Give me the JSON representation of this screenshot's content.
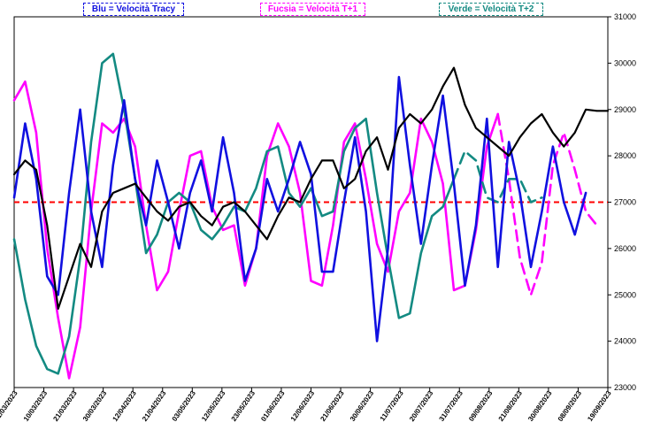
{
  "chart_data": {
    "type": "line",
    "legend": [
      {
        "label": "Blu = Velocità Tracy",
        "color": "#1010e0"
      },
      {
        "label": "Fucsia = Velocità T+1",
        "color": "#ff00ff"
      },
      {
        "label": "Verde = Velocità T+2",
        "color": "#138a82"
      }
    ],
    "y_axis": {
      "side": "right",
      "ylim": [
        23000,
        31000
      ],
      "ticks": [
        "31000",
        "30000",
        "29000",
        "28000",
        "27000",
        "26000",
        "25000",
        "24000",
        "23000"
      ]
    },
    "x_axis": {
      "ticks": [
        "01/03/2023",
        "10/03/2023",
        "21/03/2023",
        "30/03/2023",
        "12/04/2023",
        "21/04/2023",
        "03/05/2023",
        "12/05/2023",
        "23/05/2023",
        "01/06/2023",
        "12/06/2023",
        "21/06/2023",
        "30/06/2023",
        "11/07/2023",
        "20/07/2023",
        "31/07/2023",
        "09/08/2023",
        "21/08/2023",
        "30/08/2023",
        "08/09/2023",
        "19/09/2023"
      ]
    },
    "reference_line": {
      "value": 27000,
      "color": "#ff0000",
      "style": "dashed"
    },
    "series": [
      {
        "key": "price",
        "color": "#000000",
        "points": [
          [
            0,
            27600
          ],
          [
            1,
            27900
          ],
          [
            2,
            27700
          ],
          [
            3,
            26500
          ],
          [
            4,
            24700
          ],
          [
            5,
            25400
          ],
          [
            6,
            26100
          ],
          [
            7,
            25600
          ],
          [
            8,
            26800
          ],
          [
            9,
            27200
          ],
          [
            10,
            27300
          ],
          [
            11,
            27400
          ],
          [
            12,
            27100
          ],
          [
            13,
            26800
          ],
          [
            14,
            26600
          ],
          [
            15,
            26900
          ],
          [
            16,
            27000
          ],
          [
            17,
            26700
          ],
          [
            18,
            26500
          ],
          [
            19,
            26900
          ],
          [
            20,
            27000
          ],
          [
            21,
            26800
          ],
          [
            22,
            26500
          ],
          [
            23,
            26200
          ],
          [
            24,
            26700
          ],
          [
            25,
            27100
          ],
          [
            26,
            27000
          ],
          [
            27,
            27500
          ],
          [
            28,
            27900
          ],
          [
            29,
            27900
          ],
          [
            30,
            27300
          ],
          [
            31,
            27500
          ],
          [
            32,
            28100
          ],
          [
            33,
            28400
          ],
          [
            34,
            27700
          ],
          [
            35,
            28600
          ],
          [
            36,
            28900
          ],
          [
            37,
            28700
          ],
          [
            38,
            29000
          ],
          [
            39,
            29500
          ],
          [
            40,
            29900
          ],
          [
            41,
            29100
          ],
          [
            42,
            28600
          ],
          [
            43,
            28400
          ],
          [
            44,
            28200
          ],
          [
            45,
            28000
          ],
          [
            46,
            28400
          ],
          [
            47,
            28700
          ],
          [
            48,
            28900
          ],
          [
            49,
            28500
          ],
          [
            50,
            28200
          ],
          [
            51,
            28500
          ],
          [
            52,
            29000
          ],
          [
            53,
            28970
          ],
          [
            54,
            28970
          ]
        ]
      },
      {
        "key": "blu",
        "color": "#1010e0",
        "points": [
          [
            0,
            27100
          ],
          [
            1,
            28700
          ],
          [
            2,
            27500
          ],
          [
            3,
            25400
          ],
          [
            4,
            25000
          ],
          [
            5,
            27200
          ],
          [
            6,
            29000
          ],
          [
            7,
            26800
          ],
          [
            8,
            25600
          ],
          [
            9,
            27800
          ],
          [
            10,
            29200
          ],
          [
            11,
            27500
          ],
          [
            12,
            26500
          ],
          [
            13,
            27900
          ],
          [
            14,
            27000
          ],
          [
            15,
            26000
          ],
          [
            16,
            27200
          ],
          [
            17,
            27900
          ],
          [
            18,
            26800
          ],
          [
            19,
            28400
          ],
          [
            20,
            27200
          ],
          [
            21,
            25300
          ],
          [
            22,
            26000
          ],
          [
            23,
            27500
          ],
          [
            24,
            26800
          ],
          [
            25,
            27500
          ],
          [
            26,
            28300
          ],
          [
            27,
            27600
          ],
          [
            28,
            25500
          ],
          [
            29,
            25500
          ],
          [
            30,
            27000
          ],
          [
            31,
            28400
          ],
          [
            32,
            26800
          ],
          [
            33,
            24000
          ],
          [
            34,
            26000
          ],
          [
            35,
            29700
          ],
          [
            36,
            27800
          ],
          [
            37,
            26100
          ],
          [
            38,
            27800
          ],
          [
            39,
            29300
          ],
          [
            40,
            27400
          ],
          [
            41,
            25200
          ],
          [
            42,
            26500
          ],
          [
            43,
            28800
          ],
          [
            44,
            25600
          ],
          [
            45,
            28300
          ],
          [
            46,
            27200
          ],
          [
            47,
            25600
          ],
          [
            48,
            26800
          ],
          [
            49,
            28200
          ],
          [
            50,
            27000
          ],
          [
            51,
            26300
          ],
          [
            52,
            27200
          ]
        ]
      },
      {
        "key": "fucsia",
        "color": "#ff00ff",
        "points": [
          [
            0,
            29200
          ],
          [
            1,
            29600
          ],
          [
            2,
            28500
          ],
          [
            3,
            26000
          ],
          [
            4,
            24500
          ],
          [
            5,
            23200
          ],
          [
            6,
            24300
          ],
          [
            7,
            26800
          ],
          [
            8,
            28700
          ],
          [
            9,
            28500
          ],
          [
            10,
            28800
          ],
          [
            11,
            28200
          ],
          [
            12,
            26500
          ],
          [
            13,
            25100
          ],
          [
            14,
            25500
          ],
          [
            15,
            26800
          ],
          [
            16,
            28000
          ],
          [
            17,
            28100
          ],
          [
            18,
            26900
          ],
          [
            19,
            26400
          ],
          [
            20,
            26500
          ],
          [
            21,
            25200
          ],
          [
            22,
            26000
          ],
          [
            23,
            28000
          ],
          [
            24,
            28700
          ],
          [
            25,
            28200
          ],
          [
            26,
            27200
          ],
          [
            27,
            25300
          ],
          [
            28,
            25200
          ],
          [
            29,
            26500
          ],
          [
            30,
            28300
          ],
          [
            31,
            28700
          ],
          [
            32,
            27500
          ],
          [
            33,
            26100
          ],
          [
            34,
            25500
          ],
          [
            35,
            26800
          ],
          [
            36,
            27200
          ],
          [
            37,
            28800
          ],
          [
            38,
            28300
          ],
          [
            39,
            27400
          ],
          [
            40,
            25100
          ],
          [
            41,
            25200
          ],
          [
            42,
            26400
          ],
          [
            43,
            28200
          ],
          [
            44,
            28900
          ]
        ]
      },
      {
        "key": "fucsia_proj",
        "color": "#ff00ff",
        "dashed": true,
        "points": [
          [
            44,
            28900
          ],
          [
            45,
            27500
          ],
          [
            46,
            25800
          ],
          [
            47,
            25000
          ],
          [
            48,
            25700
          ],
          [
            49,
            27800
          ],
          [
            50,
            28500
          ],
          [
            51,
            27700
          ],
          [
            52,
            26800
          ],
          [
            53,
            26500
          ]
        ]
      },
      {
        "key": "verde",
        "color": "#138a82",
        "points": [
          [
            0,
            26200
          ],
          [
            1,
            24900
          ],
          [
            2,
            23900
          ],
          [
            3,
            23400
          ],
          [
            4,
            23300
          ],
          [
            5,
            24100
          ],
          [
            6,
            25800
          ],
          [
            7,
            28300
          ],
          [
            8,
            30000
          ],
          [
            9,
            30200
          ],
          [
            10,
            29000
          ],
          [
            11,
            27500
          ],
          [
            12,
            25900
          ],
          [
            13,
            26300
          ],
          [
            14,
            27000
          ],
          [
            15,
            27200
          ],
          [
            16,
            27000
          ],
          [
            17,
            26400
          ],
          [
            18,
            26200
          ],
          [
            19,
            26500
          ],
          [
            20,
            26900
          ],
          [
            21,
            26800
          ],
          [
            22,
            27300
          ],
          [
            23,
            28100
          ],
          [
            24,
            28200
          ],
          [
            25,
            27200
          ],
          [
            26,
            26900
          ],
          [
            27,
            27300
          ],
          [
            28,
            26700
          ],
          [
            29,
            26800
          ],
          [
            30,
            28100
          ],
          [
            31,
            28600
          ],
          [
            32,
            28800
          ],
          [
            33,
            27200
          ],
          [
            34,
            25800
          ],
          [
            35,
            24500
          ],
          [
            36,
            24600
          ],
          [
            37,
            25900
          ],
          [
            38,
            26700
          ],
          [
            39,
            26900
          ],
          [
            40,
            27500
          ]
        ]
      },
      {
        "key": "verde_proj",
        "color": "#138a82",
        "dashed": true,
        "points": [
          [
            40,
            27500
          ],
          [
            41,
            28100
          ],
          [
            42,
            27900
          ],
          [
            43,
            27100
          ],
          [
            44,
            27000
          ],
          [
            45,
            27500
          ],
          [
            46,
            27500
          ],
          [
            47,
            27000
          ],
          [
            48,
            27100
          ]
        ]
      }
    ]
  }
}
